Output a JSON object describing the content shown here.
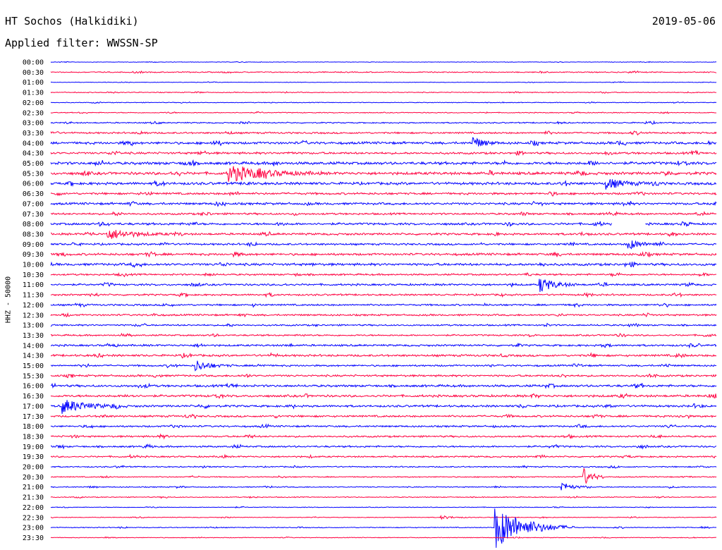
{
  "header": {
    "station": "HT Sochos (Halkidiki)",
    "filter_label": "Applied filter: WWSSN-SP",
    "date": "2019-05-06"
  },
  "chart_data": {
    "type": "line",
    "title": "HT Sochos (Halkidiki)",
    "subtitle": "Applied filter: WWSSN-SP",
    "date": "2019-05-06",
    "ylabel": "HHZ - 50000",
    "xlabel": "",
    "row_labels": [
      "00:00",
      "00:30",
      "01:00",
      "01:30",
      "02:00",
      "02:30",
      "03:00",
      "03:30",
      "04:00",
      "04:30",
      "05:00",
      "05:30",
      "06:00",
      "06:30",
      "07:00",
      "07:30",
      "08:00",
      "08:30",
      "09:00",
      "09:30",
      "10:00",
      "10:30",
      "11:00",
      "11:30",
      "12:00",
      "12:30",
      "13:00",
      "13:30",
      "14:00",
      "14:30",
      "15:00",
      "15:30",
      "16:00",
      "16:30",
      "17:00",
      "17:30",
      "18:00",
      "18:30",
      "19:00",
      "19:30",
      "20:00",
      "20:30",
      "21:00",
      "21:30",
      "22:00",
      "22:30",
      "23:00",
      "23:30"
    ],
    "row_minutes": 30,
    "colors": [
      "#0000ff",
      "#ff0040"
    ],
    "noise_level": [
      0.3,
      0.6,
      0.3,
      0.5,
      0.4,
      0.5,
      0.7,
      1.0,
      1.4,
      1.2,
      1.6,
      1.6,
      1.5,
      1.2,
      1.3,
      1.1,
      1.3,
      1.2,
      1.1,
      1.3,
      1.4,
      1.0,
      1.1,
      1.0,
      1.0,
      1.0,
      0.9,
      0.9,
      1.1,
      1.2,
      1.0,
      1.1,
      1.3,
      1.3,
      1.2,
      1.1,
      1.0,
      1.0,
      1.0,
      0.9,
      0.7,
      0.6,
      0.6,
      0.5,
      0.4,
      0.4,
      0.5,
      0.4
    ],
    "events": [
      {
        "row": 46,
        "minute": 20.0,
        "amplitude": 32,
        "duration": 1.2
      },
      {
        "row": 11,
        "minute": 8.0,
        "amplitude": 12,
        "duration": 1.4
      },
      {
        "row": 18,
        "minute": 26.0,
        "amplitude": 8,
        "duration": 0.5
      },
      {
        "row": 22,
        "minute": 22.0,
        "amplitude": 12,
        "duration": 0.6
      },
      {
        "row": 34,
        "minute": 0.5,
        "amplitude": 10,
        "duration": 1.0
      },
      {
        "row": 41,
        "minute": 24.0,
        "amplitude": 14,
        "duration": 0.3
      },
      {
        "row": 42,
        "minute": 23.0,
        "amplitude": 8,
        "duration": 0.4
      },
      {
        "row": 8,
        "minute": 19.0,
        "amplitude": 10,
        "duration": 0.4
      },
      {
        "row": 12,
        "minute": 25.0,
        "amplitude": 8,
        "duration": 0.7
      },
      {
        "row": 17,
        "minute": 2.5,
        "amplitude": 8,
        "duration": 1.0
      },
      {
        "row": 30,
        "minute": 6.5,
        "amplitude": 8,
        "duration": 0.6
      },
      {
        "row": 45,
        "minute": 17.5,
        "amplitude": 3,
        "duration": 0.5
      }
    ],
    "gap": {
      "row": 16,
      "start_minute": 25.3,
      "end_minute": 26.8
    }
  }
}
